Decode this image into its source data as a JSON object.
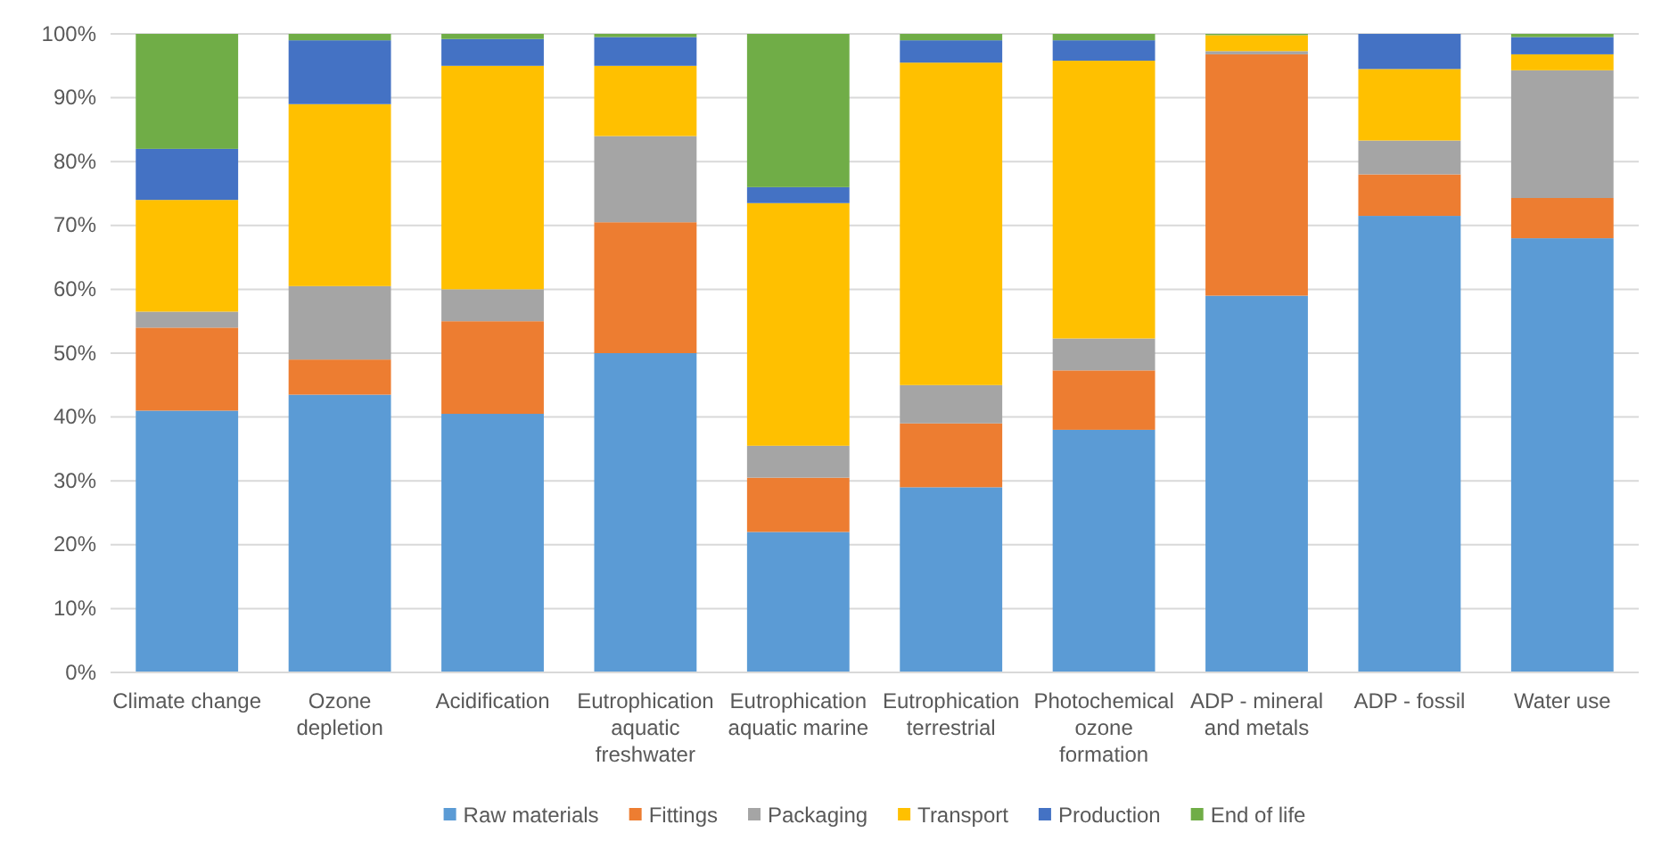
{
  "chart_data": {
    "type": "bar",
    "stacked": true,
    "categories": [
      "Climate change",
      "Ozone depletion",
      "Acidification",
      "Eutrophication aquatic freshwater",
      "Eutrophication aquatic marine",
      "Eutrophication terrestrial",
      "Photochemical ozone formation",
      "ADP - mineral and metals",
      "ADP - fossil",
      "Water use"
    ],
    "series": [
      {
        "name": "Raw materials",
        "color": "#5b9bd5",
        "values": [
          41,
          43.5,
          40.5,
          50,
          22,
          29,
          38,
          59,
          71.5,
          68
        ]
      },
      {
        "name": "Fittings",
        "color": "#ed7d31",
        "values": [
          13,
          5.5,
          14.5,
          20.5,
          8.5,
          10,
          9.3,
          37.8,
          6.5,
          6.3
        ]
      },
      {
        "name": "Packaging",
        "color": "#a5a5a5",
        "values": [
          2.5,
          11.5,
          5,
          13.5,
          5,
          6,
          5,
          0.5,
          5.3,
          20
        ]
      },
      {
        "name": "Transport",
        "color": "#ffc000",
        "values": [
          17.5,
          28.5,
          35,
          11,
          38,
          50.5,
          43.5,
          2.5,
          11.2,
          2.5
        ]
      },
      {
        "name": "Production",
        "color": "#4472c4",
        "values": [
          8,
          10,
          4.2,
          4.5,
          2.5,
          3.5,
          3.2,
          0,
          5.5,
          2.7
        ]
      },
      {
        "name": "End of life",
        "color": "#70ad47",
        "values": [
          18,
          1,
          0.8,
          0.5,
          24,
          1,
          1,
          0.2,
          0,
          0.5
        ]
      }
    ],
    "ylim": [
      0,
      100
    ],
    "yticks": [
      {
        "value": 0,
        "label": "0%"
      },
      {
        "value": 10,
        "label": "10%"
      },
      {
        "value": 20,
        "label": "20%"
      },
      {
        "value": 30,
        "label": "30%"
      },
      {
        "value": 40,
        "label": "40%"
      },
      {
        "value": 50,
        "label": "50%"
      },
      {
        "value": 60,
        "label": "60%"
      },
      {
        "value": 70,
        "label": "70%"
      },
      {
        "value": 80,
        "label": "80%"
      },
      {
        "value": 90,
        "label": "90%"
      },
      {
        "value": 100,
        "label": "100%"
      }
    ],
    "grid": "y",
    "legend": "bottom"
  }
}
